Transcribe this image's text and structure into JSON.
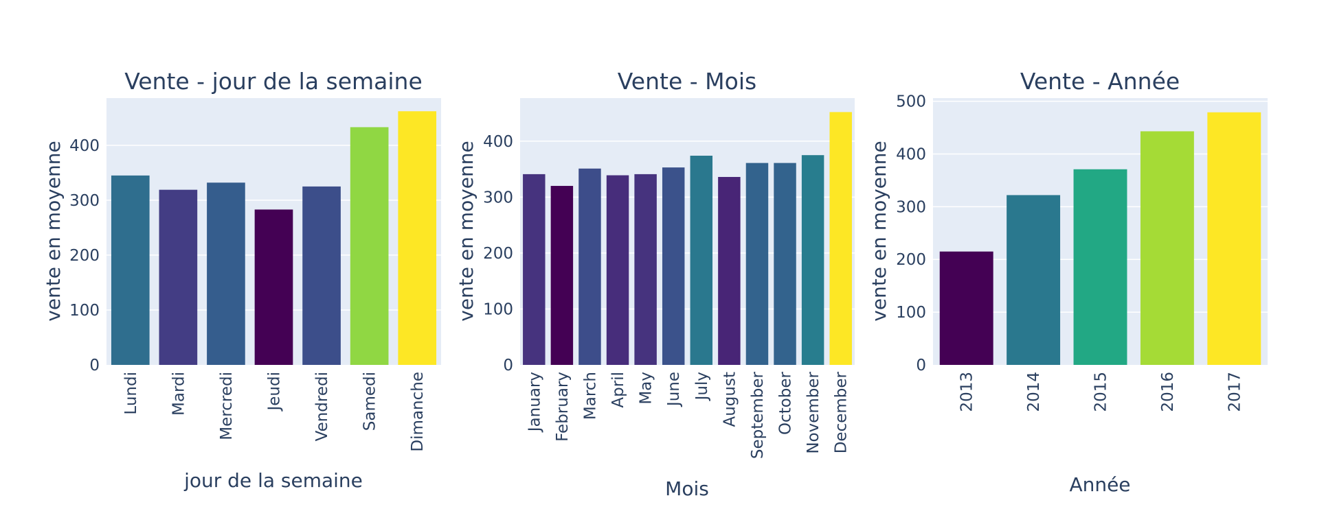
{
  "chart_data": [
    {
      "type": "bar",
      "title": "Vente - jour de la semaine",
      "xlabel": "jour de la semaine",
      "ylabel": "vente en moyenne",
      "categories": [
        "Lundi",
        "Mardi",
        "Mercredi",
        "Jeudi",
        "Vendredi",
        "Samedi",
        "Dimanche"
      ],
      "values": [
        345,
        319,
        332,
        283,
        325,
        433,
        462
      ],
      "colors": [
        "#2f6e8e",
        "#433d84",
        "#355d8d",
        "#440154",
        "#3c4e8a",
        "#90d743",
        "#fde725"
      ],
      "yticks": [
        0,
        100,
        200,
        300,
        400
      ],
      "ylim": [
        0,
        486
      ],
      "grid": true,
      "legend": false
    },
    {
      "type": "bar",
      "title": "Vente - Mois",
      "xlabel": "Mois",
      "ylabel": "vente en moyenne",
      "categories": [
        "January",
        "February",
        "March",
        "April",
        "May",
        "June",
        "July",
        "August",
        "September",
        "October",
        "November",
        "December"
      ],
      "values": [
        341,
        320,
        351,
        339,
        341,
        353,
        374,
        336,
        361,
        361,
        375,
        452
      ],
      "colors": [
        "#46337e",
        "#440154",
        "#3d4d8a",
        "#472d7b",
        "#46337e",
        "#3b528b",
        "#2a788e",
        "#482576",
        "#33638d",
        "#33638d",
        "#287d8e",
        "#fde725"
      ],
      "yticks": [
        0,
        100,
        200,
        300,
        400
      ],
      "ylim": [
        0,
        477
      ],
      "grid": true,
      "legend": false
    },
    {
      "type": "bar",
      "title": "Vente - Année",
      "xlabel": "Année",
      "ylabel": "vente en moyenne",
      "categories": [
        "2013",
        "2014",
        "2015",
        "2016",
        "2017"
      ],
      "values": [
        215,
        322,
        371,
        443,
        479
      ],
      "colors": [
        "#440154",
        "#2a788e",
        "#22a884",
        "#a5db36",
        "#fde725"
      ],
      "yticks": [
        0,
        100,
        200,
        300,
        400,
        500
      ],
      "ylim": [
        0,
        506
      ],
      "grid": true,
      "legend": false
    }
  ]
}
